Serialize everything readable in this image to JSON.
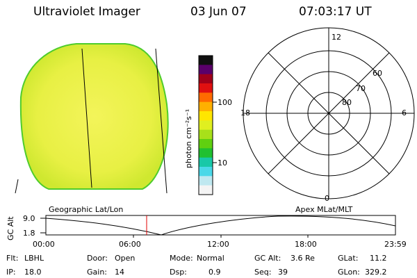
{
  "header": {
    "instrument": "Ultraviolet Imager",
    "date": "03 Jun 07",
    "time": "07:03:17 UT"
  },
  "colorbar": {
    "unit_label": "photon cm⁻²s⁻¹",
    "ticks": [
      "100",
      "10"
    ],
    "colors": [
      "#101010",
      "#5a006a",
      "#a0001a",
      "#e01010",
      "#ff6a00",
      "#ffb000",
      "#ffe600",
      "#e0ef20",
      "#a8e01a",
      "#60d010",
      "#20c030",
      "#18c8a8",
      "#4ad8e8",
      "#bfe8f0",
      "#f4f4f4"
    ]
  },
  "image_view": {
    "fill_color": "#e4f03c",
    "edge_color": "#4ecc2c"
  },
  "polar_plot": {
    "mlt_labels": [
      "12",
      "18",
      "6",
      "0"
    ],
    "lat_labels": [
      "60",
      "70",
      "80"
    ]
  },
  "mode_labels": {
    "left": "Geographic Lat/Lon",
    "right": "Apex  MLat/MLT"
  },
  "alt_plot": {
    "axis_label": "GC Alt",
    "y_ticks": [
      "9.0",
      "1.8"
    ],
    "x_ticks": [
      "00:00",
      "06:00",
      "12:00",
      "18:00",
      "23:59"
    ],
    "current_time_color": "#e00000"
  },
  "status": {
    "flt_label": "Flt:",
    "flt_value": "LBHL",
    "ip_label": "IP:",
    "ip_value": "18.0",
    "door_label": "Door:",
    "door_value": "Open",
    "gain_label": "Gain:",
    "gain_value": "14",
    "mode_label": "Mode:",
    "mode_value": "Normal",
    "dsp_label": "Dsp:",
    "dsp_value": "0.9",
    "gcalt_label": "GC Alt:",
    "gcalt_value": "3.6 Re",
    "seq_label": "Seq:",
    "seq_value": "39",
    "glat_label": "GLat:",
    "glat_value": "11.2",
    "glon_label": "GLon:",
    "glon_value": "329.2"
  }
}
